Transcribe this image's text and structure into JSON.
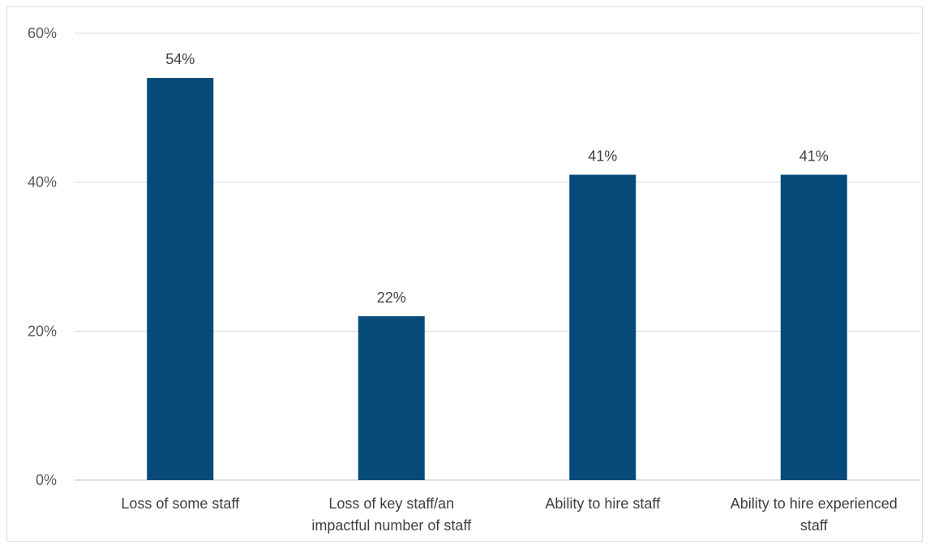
{
  "chart_data": {
    "type": "bar",
    "categories": [
      [
        "Loss of some staff"
      ],
      [
        "Loss of key staff/an",
        "impactful number of staff"
      ],
      [
        "Ability to hire staff"
      ],
      [
        "Ability to hire experienced",
        "staff"
      ]
    ],
    "values": [
      54,
      22,
      41,
      41
    ],
    "data_labels": [
      "54%",
      "22%",
      "41%",
      "41%"
    ],
    "ylim": [
      0,
      60
    ],
    "yticks": [
      0,
      20,
      40,
      60
    ],
    "ytick_labels": [
      "0%",
      "20%",
      "40%",
      "60%"
    ],
    "title": "",
    "xlabel": "",
    "ylabel": "",
    "grid": true,
    "legend": "none",
    "colors": {
      "bar": "#064a7a",
      "grid": "#d9d9d9",
      "axis": "#bfbfbf"
    }
  }
}
